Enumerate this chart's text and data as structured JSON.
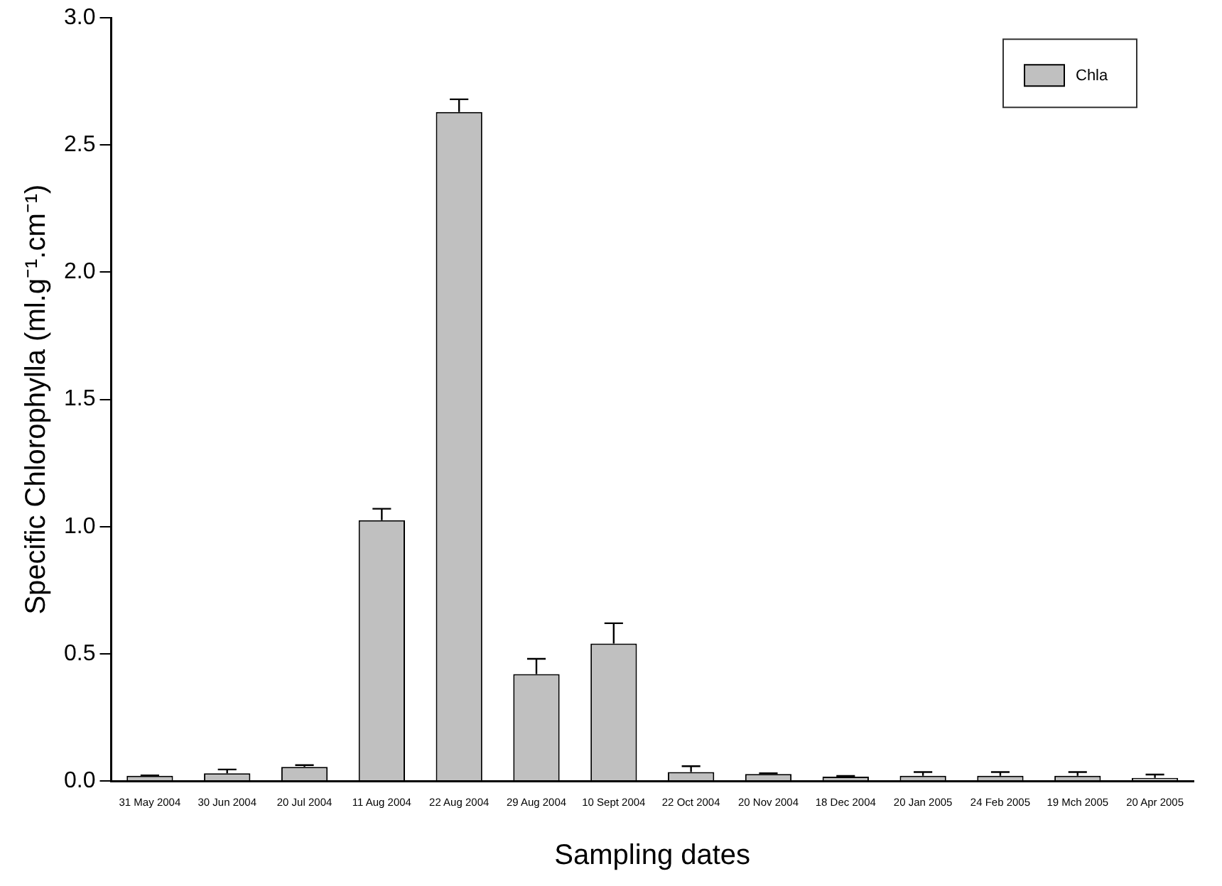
{
  "chart_data": {
    "type": "bar",
    "xlabel": "Sampling dates",
    "ylabel": "Specific Chlorophylla (ml.g⁻¹.cm⁻¹)",
    "categories": [
      "31 May 2004",
      "30 Jun 2004",
      "20 Jul 2004",
      "11 Aug 2004",
      "22 Aug 2004",
      "29 Aug 2004",
      "10 Sept 2004",
      "22 Oct 2004",
      "20 Nov 2004",
      "18 Dec 2004",
      "20 Jan 2005",
      "24 Feb 2005",
      "19 Mch 2005",
      "20 Apr 2005"
    ],
    "series": [
      {
        "name": "Chla",
        "color": "#c0c0c0",
        "values": [
          0.02,
          0.03,
          0.055,
          1.025,
          2.63,
          0.42,
          0.54,
          0.035,
          0.027,
          0.017,
          0.02,
          0.02,
          0.02,
          0.012
        ],
        "errors": [
          [
            0.02,
            0.022
          ],
          [
            0.03,
            0.045
          ],
          [
            0.055,
            0.062
          ],
          [
            1.025,
            1.07
          ],
          [
            2.63,
            2.68
          ],
          [
            0.42,
            0.48
          ],
          [
            0.54,
            0.62
          ],
          [
            0.035,
            0.058
          ],
          [
            0.027,
            0.03
          ],
          [
            0.017,
            0.02
          ],
          [
            0.02,
            0.035
          ],
          [
            0.02,
            0.035
          ],
          [
            0.02,
            0.035
          ],
          [
            0.012,
            0.025
          ]
        ]
      }
    ],
    "ylim": [
      0,
      3
    ],
    "yticks": [
      {
        "value": 0,
        "label": "0.0"
      },
      0.5,
      {
        "value": 1,
        "label": "1.0"
      },
      1.5,
      {
        "value": 2,
        "label": "2.0"
      },
      2.5,
      {
        "value": 3,
        "label": "3.0"
      }
    ],
    "grid": false,
    "legend": "top right"
  }
}
